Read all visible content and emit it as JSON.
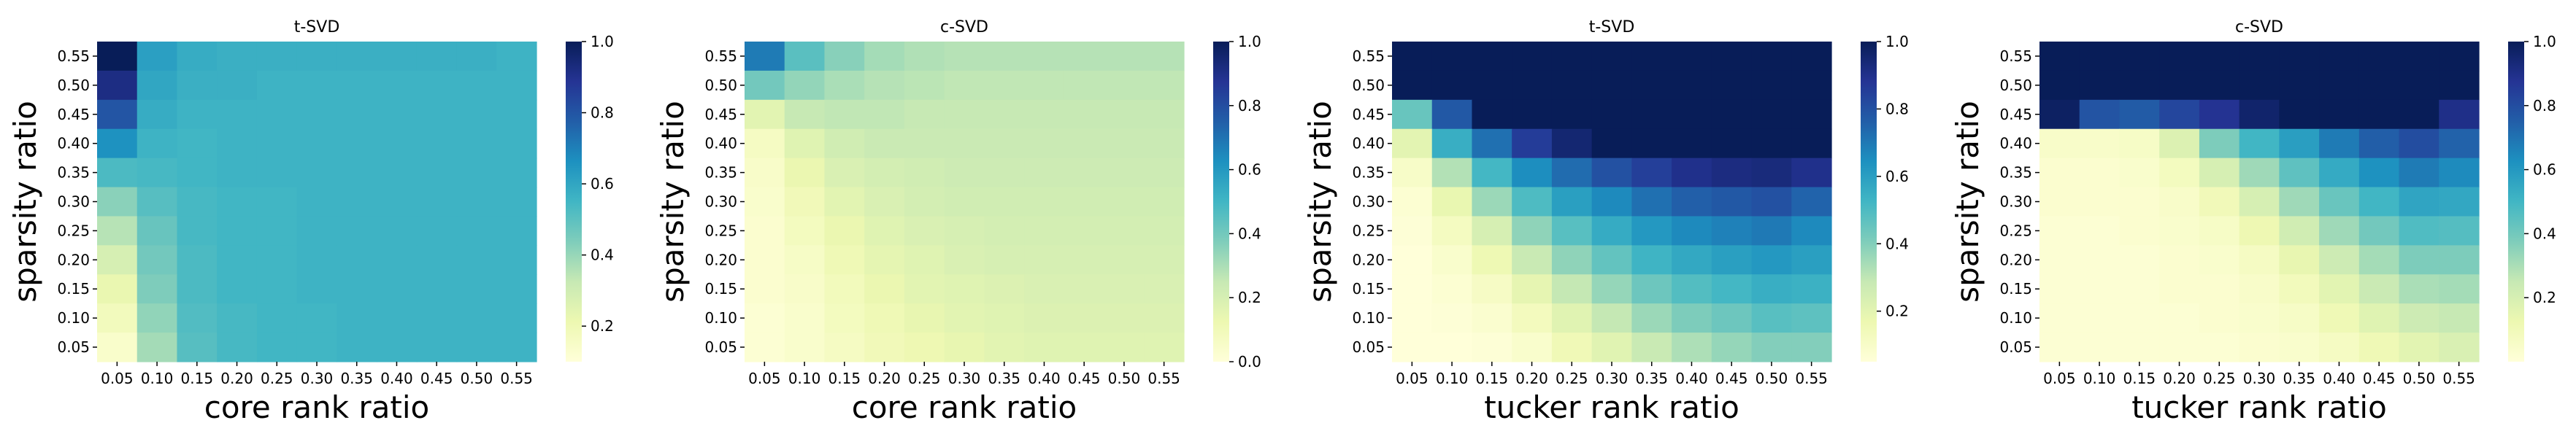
{
  "colormap": {
    "name": "YlGnBu",
    "stops": [
      "#ffffd9",
      "#edf8b1",
      "#c7e9b4",
      "#7fcdbb",
      "#41b6c4",
      "#1d91c0",
      "#225ea8",
      "#253494",
      "#081d58"
    ]
  },
  "chart_data": [
    {
      "type": "heatmap",
      "title": "t-SVD",
      "xlabel": "core rank ratio",
      "ylabel": "sparsity ratio",
      "x_ticks": [
        "0.05",
        "0.10",
        "0.15",
        "0.20",
        "0.25",
        "0.30",
        "0.35",
        "0.40",
        "0.45",
        "0.50",
        "0.55"
      ],
      "y_ticks": [
        "0.55",
        "0.50",
        "0.45",
        "0.40",
        "0.35",
        "0.30",
        "0.25",
        "0.20",
        "0.15",
        "0.10",
        "0.05"
      ],
      "colorbar": {
        "vmin": 0.1,
        "vmax": 1.0,
        "ticks": [
          "1.0",
          "0.8",
          "0.6",
          "0.4",
          "0.2"
        ]
      },
      "values": [
        [
          1.0,
          0.62,
          0.58,
          0.57,
          0.57,
          0.57,
          0.57,
          0.57,
          0.57,
          0.57,
          0.56
        ],
        [
          0.92,
          0.6,
          0.57,
          0.57,
          0.56,
          0.56,
          0.56,
          0.56,
          0.56,
          0.56,
          0.56
        ],
        [
          0.8,
          0.58,
          0.56,
          0.56,
          0.56,
          0.56,
          0.56,
          0.56,
          0.56,
          0.56,
          0.56
        ],
        [
          0.66,
          0.56,
          0.55,
          0.56,
          0.56,
          0.56,
          0.56,
          0.56,
          0.56,
          0.56,
          0.56
        ],
        [
          0.53,
          0.54,
          0.55,
          0.56,
          0.56,
          0.56,
          0.56,
          0.56,
          0.56,
          0.56,
          0.56
        ],
        [
          0.42,
          0.51,
          0.54,
          0.55,
          0.55,
          0.56,
          0.56,
          0.56,
          0.56,
          0.56,
          0.56
        ],
        [
          0.35,
          0.48,
          0.54,
          0.55,
          0.55,
          0.56,
          0.56,
          0.56,
          0.56,
          0.56,
          0.56
        ],
        [
          0.28,
          0.46,
          0.53,
          0.55,
          0.55,
          0.56,
          0.56,
          0.56,
          0.56,
          0.56,
          0.56
        ],
        [
          0.22,
          0.44,
          0.53,
          0.55,
          0.55,
          0.56,
          0.56,
          0.56,
          0.56,
          0.56,
          0.56
        ],
        [
          0.18,
          0.41,
          0.52,
          0.54,
          0.55,
          0.55,
          0.56,
          0.56,
          0.56,
          0.56,
          0.56
        ],
        [
          0.14,
          0.38,
          0.51,
          0.54,
          0.55,
          0.55,
          0.56,
          0.56,
          0.56,
          0.56,
          0.56
        ]
      ]
    },
    {
      "type": "heatmap",
      "title": "c-SVD",
      "xlabel": "core rank ratio",
      "ylabel": "sparsity ratio",
      "x_ticks": [
        "0.05",
        "0.10",
        "0.15",
        "0.20",
        "0.25",
        "0.30",
        "0.35",
        "0.40",
        "0.45",
        "0.50",
        "0.55"
      ],
      "y_ticks": [
        "0.55",
        "0.50",
        "0.45",
        "0.40",
        "0.35",
        "0.30",
        "0.25",
        "0.20",
        "0.15",
        "0.10",
        "0.05"
      ],
      "colorbar": {
        "vmin": 0.0,
        "vmax": 1.0,
        "ticks": [
          "1.0",
          "0.8",
          "0.6",
          "0.4",
          "0.2",
          "0.0"
        ]
      },
      "values": [
        [
          0.68,
          0.45,
          0.36,
          0.31,
          0.29,
          0.28,
          0.28,
          0.28,
          0.28,
          0.28,
          0.28
        ],
        [
          0.4,
          0.34,
          0.3,
          0.28,
          0.27,
          0.26,
          0.26,
          0.26,
          0.26,
          0.26,
          0.26
        ],
        [
          0.16,
          0.25,
          0.26,
          0.26,
          0.25,
          0.25,
          0.25,
          0.25,
          0.25,
          0.25,
          0.25
        ],
        [
          0.07,
          0.17,
          0.22,
          0.24,
          0.24,
          0.24,
          0.24,
          0.24,
          0.24,
          0.24,
          0.24
        ],
        [
          0.05,
          0.13,
          0.19,
          0.21,
          0.22,
          0.23,
          0.23,
          0.23,
          0.23,
          0.23,
          0.23
        ],
        [
          0.04,
          0.1,
          0.16,
          0.19,
          0.21,
          0.22,
          0.22,
          0.22,
          0.22,
          0.22,
          0.22
        ],
        [
          0.03,
          0.08,
          0.13,
          0.17,
          0.19,
          0.2,
          0.21,
          0.21,
          0.21,
          0.21,
          0.21
        ],
        [
          0.03,
          0.06,
          0.11,
          0.15,
          0.17,
          0.19,
          0.2,
          0.2,
          0.2,
          0.2,
          0.2
        ],
        [
          0.03,
          0.05,
          0.09,
          0.13,
          0.16,
          0.17,
          0.18,
          0.19,
          0.19,
          0.19,
          0.19
        ],
        [
          0.02,
          0.04,
          0.08,
          0.11,
          0.14,
          0.16,
          0.17,
          0.18,
          0.18,
          0.18,
          0.18
        ],
        [
          0.02,
          0.04,
          0.07,
          0.1,
          0.12,
          0.14,
          0.16,
          0.17,
          0.17,
          0.17,
          0.17
        ]
      ]
    },
    {
      "type": "heatmap",
      "title": "t-SVD",
      "xlabel": "tucker rank ratio",
      "ylabel": "sparsity ratio",
      "x_ticks": [
        "0.05",
        "0.10",
        "0.15",
        "0.20",
        "0.25",
        "0.30",
        "0.35",
        "0.40",
        "0.45",
        "0.50",
        "0.55"
      ],
      "y_ticks": [
        "0.55",
        "0.50",
        "0.45",
        "0.40",
        "0.35",
        "0.30",
        "0.25",
        "0.20",
        "0.15",
        "0.10",
        "0.05"
      ],
      "colorbar": {
        "vmin": 0.05,
        "vmax": 1.0,
        "ticks": [
          "1.0",
          "0.8",
          "0.6",
          "0.4",
          "0.2"
        ]
      },
      "values": [
        [
          1.0,
          1.0,
          1.0,
          1.0,
          1.0,
          1.0,
          1.0,
          1.0,
          1.0,
          1.0,
          1.0
        ],
        [
          1.0,
          1.0,
          1.0,
          1.0,
          1.0,
          1.0,
          1.0,
          1.0,
          1.0,
          1.0,
          1.0
        ],
        [
          0.45,
          0.78,
          1.0,
          1.0,
          1.0,
          1.0,
          1.0,
          1.0,
          1.0,
          1.0,
          1.0
        ],
        [
          0.2,
          0.55,
          0.72,
          0.86,
          0.95,
          1.0,
          1.0,
          1.0,
          1.0,
          1.0,
          1.0
        ],
        [
          0.1,
          0.32,
          0.52,
          0.65,
          0.73,
          0.8,
          0.85,
          0.9,
          0.92,
          0.93,
          0.9
        ],
        [
          0.07,
          0.18,
          0.36,
          0.5,
          0.6,
          0.66,
          0.72,
          0.76,
          0.78,
          0.8,
          0.75
        ],
        [
          0.06,
          0.12,
          0.24,
          0.38,
          0.48,
          0.56,
          0.62,
          0.66,
          0.68,
          0.7,
          0.66
        ],
        [
          0.05,
          0.09,
          0.16,
          0.28,
          0.38,
          0.46,
          0.53,
          0.57,
          0.6,
          0.62,
          0.6
        ],
        [
          0.05,
          0.07,
          0.11,
          0.19,
          0.29,
          0.37,
          0.44,
          0.49,
          0.52,
          0.55,
          0.54
        ],
        [
          0.05,
          0.06,
          0.08,
          0.13,
          0.21,
          0.29,
          0.36,
          0.41,
          0.44,
          0.48,
          0.47
        ],
        [
          0.05,
          0.05,
          0.06,
          0.09,
          0.15,
          0.21,
          0.28,
          0.33,
          0.37,
          0.4,
          0.4
        ]
      ]
    },
    {
      "type": "heatmap",
      "title": "c-SVD",
      "xlabel": "tucker rank ratio",
      "ylabel": "sparsity ratio",
      "x_ticks": [
        "0.05",
        "0.10",
        "0.15",
        "0.20",
        "0.25",
        "0.30",
        "0.35",
        "0.40",
        "0.45",
        "0.50",
        "0.55"
      ],
      "y_ticks": [
        "0.55",
        "0.50",
        "0.45",
        "0.40",
        "0.35",
        "0.30",
        "0.25",
        "0.20",
        "0.15",
        "0.10",
        "0.05"
      ],
      "colorbar": {
        "vmin": 0.0,
        "vmax": 1.0,
        "ticks": [
          "1.0",
          "0.8",
          "0.6",
          "0.4",
          "0.2"
        ]
      },
      "values": [
        [
          1.0,
          1.0,
          1.0,
          1.0,
          1.0,
          1.0,
          1.0,
          1.0,
          1.0,
          1.0,
          1.0
        ],
        [
          1.0,
          1.0,
          1.0,
          1.0,
          1.0,
          1.0,
          1.0,
          1.0,
          1.0,
          1.0,
          1.0
        ],
        [
          0.98,
          0.78,
          0.76,
          0.82,
          0.88,
          0.96,
          1.0,
          1.0,
          1.0,
          1.0,
          0.9
        ],
        [
          0.05,
          0.05,
          0.06,
          0.18,
          0.38,
          0.5,
          0.58,
          0.68,
          0.75,
          0.8,
          0.74
        ],
        [
          0.03,
          0.03,
          0.04,
          0.08,
          0.2,
          0.32,
          0.44,
          0.54,
          0.62,
          0.68,
          0.64
        ],
        [
          0.03,
          0.03,
          0.03,
          0.05,
          0.1,
          0.2,
          0.32,
          0.42,
          0.5,
          0.56,
          0.55
        ],
        [
          0.02,
          0.02,
          0.03,
          0.04,
          0.06,
          0.12,
          0.22,
          0.32,
          0.4,
          0.47,
          0.46
        ],
        [
          0.02,
          0.02,
          0.02,
          0.03,
          0.04,
          0.07,
          0.14,
          0.23,
          0.31,
          0.38,
          0.38
        ],
        [
          0.02,
          0.02,
          0.02,
          0.03,
          0.03,
          0.05,
          0.09,
          0.16,
          0.24,
          0.3,
          0.31
        ],
        [
          0.02,
          0.02,
          0.02,
          0.02,
          0.03,
          0.04,
          0.06,
          0.11,
          0.17,
          0.23,
          0.25
        ],
        [
          0.02,
          0.02,
          0.02,
          0.02,
          0.02,
          0.03,
          0.04,
          0.07,
          0.11,
          0.16,
          0.19
        ]
      ]
    }
  ]
}
